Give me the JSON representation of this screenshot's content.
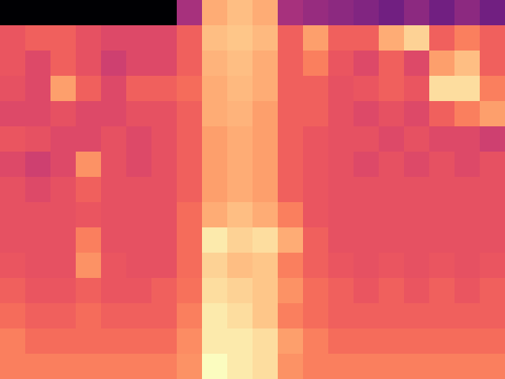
{
  "chart_data": {
    "type": "heatmap",
    "color": "magma",
    "tick_labels": false,
    "cells": [
      [
        0,
        0,
        0,
        0,
        0,
        0,
        0,
        0.35,
        0.62,
        0.65,
        0.62,
        0.35,
        0.32,
        0.3,
        0.28,
        0.25,
        0.3,
        0.25,
        0.3,
        0.25
      ],
      [
        0.48,
        0.5,
        0.5,
        0.47,
        0.45,
        0.45,
        0.45,
        0.5,
        0.65,
        0.66,
        0.64,
        0.5,
        0.6,
        0.5,
        0.5,
        0.62,
        0.68,
        0.5,
        0.55,
        0.5
      ],
      [
        0.48,
        0.45,
        0.5,
        0.47,
        0.42,
        0.45,
        0.45,
        0.5,
        0.63,
        0.65,
        0.62,
        0.5,
        0.55,
        0.48,
        0.45,
        0.5,
        0.45,
        0.6,
        0.65,
        0.5
      ],
      [
        0.47,
        0.45,
        0.6,
        0.5,
        0.45,
        0.5,
        0.5,
        0.52,
        0.62,
        0.64,
        0.62,
        0.5,
        0.5,
        0.47,
        0.48,
        0.5,
        0.48,
        0.7,
        0.7,
        0.55
      ],
      [
        0.45,
        0.45,
        0.47,
        0.45,
        0.45,
        0.47,
        0.47,
        0.5,
        0.62,
        0.63,
        0.6,
        0.5,
        0.5,
        0.47,
        0.45,
        0.47,
        0.45,
        0.5,
        0.55,
        0.6
      ],
      [
        0.48,
        0.47,
        0.45,
        0.45,
        0.47,
        0.45,
        0.47,
        0.5,
        0.6,
        0.62,
        0.6,
        0.5,
        0.48,
        0.47,
        0.47,
        0.45,
        0.47,
        0.45,
        0.45,
        0.42
      ],
      [
        0.45,
        0.42,
        0.45,
        0.58,
        0.47,
        0.45,
        0.47,
        0.5,
        0.6,
        0.62,
        0.6,
        0.5,
        0.48,
        0.47,
        0.45,
        0.47,
        0.45,
        0.47,
        0.45,
        0.47
      ],
      [
        0.47,
        0.45,
        0.47,
        0.5,
        0.47,
        0.47,
        0.47,
        0.5,
        0.6,
        0.62,
        0.6,
        0.5,
        0.48,
        0.47,
        0.47,
        0.47,
        0.47,
        0.47,
        0.47,
        0.47
      ],
      [
        0.47,
        0.47,
        0.47,
        0.48,
        0.47,
        0.47,
        0.47,
        0.52,
        0.62,
        0.65,
        0.62,
        0.55,
        0.48,
        0.47,
        0.47,
        0.47,
        0.47,
        0.47,
        0.47,
        0.47
      ],
      [
        0.47,
        0.47,
        0.47,
        0.55,
        0.47,
        0.47,
        0.47,
        0.52,
        0.72,
        0.68,
        0.7,
        0.62,
        0.5,
        0.47,
        0.47,
        0.47,
        0.47,
        0.47,
        0.47,
        0.47
      ],
      [
        0.48,
        0.47,
        0.47,
        0.58,
        0.48,
        0.47,
        0.47,
        0.52,
        0.68,
        0.65,
        0.66,
        0.55,
        0.5,
        0.48,
        0.47,
        0.48,
        0.47,
        0.48,
        0.47,
        0.48
      ],
      [
        0.5,
        0.48,
        0.48,
        0.5,
        0.48,
        0.48,
        0.5,
        0.53,
        0.7,
        0.68,
        0.66,
        0.58,
        0.52,
        0.5,
        0.48,
        0.5,
        0.48,
        0.5,
        0.48,
        0.5
      ],
      [
        0.52,
        0.5,
        0.5,
        0.52,
        0.5,
        0.5,
        0.5,
        0.55,
        0.72,
        0.7,
        0.66,
        0.55,
        0.52,
        0.5,
        0.5,
        0.5,
        0.5,
        0.5,
        0.5,
        0.5
      ],
      [
        0.55,
        0.52,
        0.52,
        0.52,
        0.52,
        0.52,
        0.52,
        0.57,
        0.72,
        0.72,
        0.7,
        0.6,
        0.55,
        0.52,
        0.52,
        0.52,
        0.52,
        0.52,
        0.52,
        0.52
      ],
      [
        0.55,
        0.55,
        0.55,
        0.55,
        0.55,
        0.55,
        0.55,
        0.58,
        0.75,
        0.72,
        0.7,
        0.58,
        0.55,
        0.55,
        0.55,
        0.55,
        0.55,
        0.55,
        0.55,
        0.55
      ]
    ]
  }
}
